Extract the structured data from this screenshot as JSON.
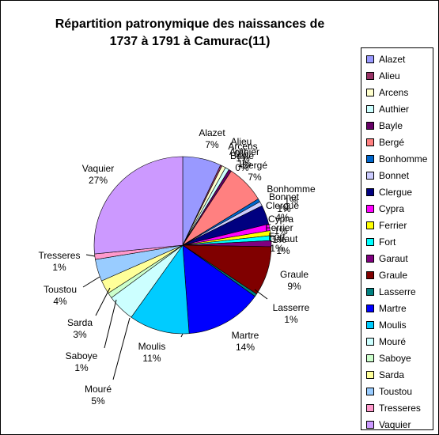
{
  "chart_data": {
    "type": "pie",
    "title": "Répartition patronymique des naissances de 1737 à 1791 à Camurac(11)",
    "legend_position": "right",
    "slices": [
      {
        "label": "Alazet",
        "value": 7,
        "pct_label": "7%",
        "color": "#9999ff"
      },
      {
        "label": "Alieu",
        "value": 0.3,
        "pct_label": "0%",
        "color": "#993366"
      },
      {
        "label": "Arcens",
        "value": 0.7,
        "pct_label": "1%",
        "color": "#ffffcc"
      },
      {
        "label": "Authier",
        "value": 0.7,
        "pct_label": "1%",
        "color": "#ccffff"
      },
      {
        "label": "Bayle",
        "value": 0.5,
        "pct_label": "0%",
        "color": "#660066"
      },
      {
        "label": "Bergé",
        "value": 7,
        "pct_label": "7%",
        "color": "#ff8080"
      },
      {
        "label": "Bonhomme",
        "value": 0.6,
        "pct_label": "1%",
        "color": "#0066cc"
      },
      {
        "label": "Bonnet",
        "value": 0.8,
        "pct_label": "1%",
        "color": "#ccccff"
      },
      {
        "label": "Clergue",
        "value": 3.5,
        "pct_label": "4%",
        "color": "#000080"
      },
      {
        "label": "Cypra",
        "value": 1.2,
        "pct_label": "1%",
        "color": "#ff00ff"
      },
      {
        "label": "Ferrier",
        "value": 0.9,
        "pct_label": "1%",
        "color": "#ffff00"
      },
      {
        "label": "Fort",
        "value": 0.9,
        "pct_label": "1%",
        "color": "#00ffff"
      },
      {
        "label": "Garaut",
        "value": 1.1,
        "pct_label": "1%",
        "color": "#800080"
      },
      {
        "label": "Graule",
        "value": 9,
        "pct_label": "9%",
        "color": "#800000"
      },
      {
        "label": "Lasserre",
        "value": 0.5,
        "pct_label": "1%",
        "color": "#008080"
      },
      {
        "label": "Martre",
        "value": 14,
        "pct_label": "14%",
        "color": "#0000ff"
      },
      {
        "label": "Moulis",
        "value": 11,
        "pct_label": "11%",
        "color": "#00ccff"
      },
      {
        "label": "Mouré",
        "value": 5,
        "pct_label": "5%",
        "color": "#ccffff"
      },
      {
        "label": "Saboye",
        "value": 1,
        "pct_label": "1%",
        "color": "#ccffcc"
      },
      {
        "label": "Sarda",
        "value": 2.5,
        "pct_label": "3%",
        "color": "#ffff99"
      },
      {
        "label": "Toustou",
        "value": 4,
        "pct_label": "4%",
        "color": "#99ccff"
      },
      {
        "label": "Tresseres",
        "value": 1,
        "pct_label": "1%",
        "color": "#ff99cc"
      },
      {
        "label": "Vaquier",
        "value": 26.5,
        "pct_label": "27%",
        "color": "#cc99ff"
      }
    ]
  }
}
